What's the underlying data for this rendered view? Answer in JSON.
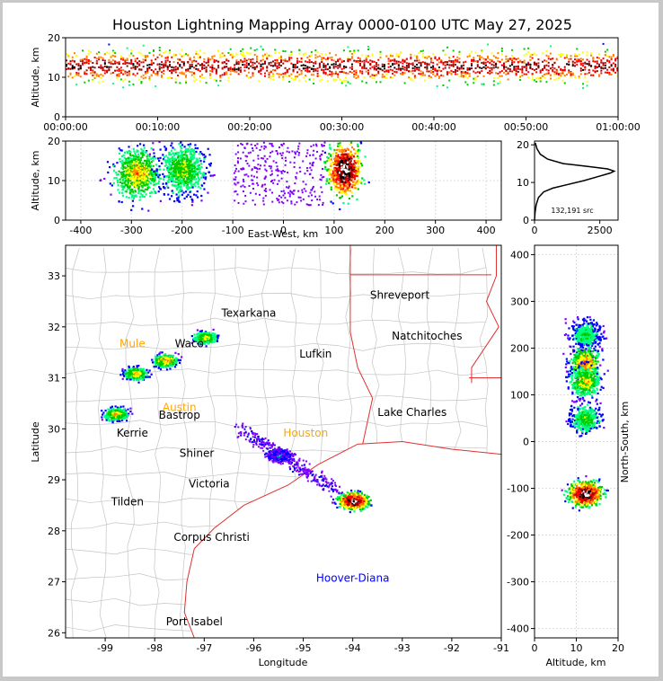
{
  "chart_data": [
    {
      "type": "heatmap",
      "panel": "altitude-vs-time",
      "title": "Houston Lightning Mapping Array 0000-0100 UTC May 27, 2025",
      "ylabel": "Altitude, km",
      "xlabel": "",
      "x_ticks": [
        "00:00:00",
        "00:10:00",
        "00:20:00",
        "00:30:00",
        "00:40:00",
        "00:50:00",
        "01:00:00"
      ],
      "x_range_minutes": [
        0,
        60
      ],
      "y_ticks": [
        0,
        10,
        20
      ],
      "ylim": [
        0,
        20
      ],
      "band": {
        "core_altitude_km": 13,
        "extent_km": [
          4,
          20
        ]
      }
    },
    {
      "type": "heatmap",
      "panel": "altitude-vs-east-west",
      "xlabel": "East-West, km",
      "ylabel": "Altitude, km",
      "x_ticks": [
        -400,
        -300,
        -200,
        -100,
        0,
        100,
        200,
        300,
        400
      ],
      "xlim": [
        -430,
        430
      ],
      "y_ticks": [
        0,
        10,
        20
      ],
      "ylim": [
        0,
        20
      ],
      "clusters": [
        {
          "x_km": -290,
          "alt_km": 12,
          "density": 0.55
        },
        {
          "x_km": -200,
          "alt_km": 13,
          "density": 0.45
        },
        {
          "x_km": 120,
          "alt_km": 13,
          "density": 1.0
        }
      ]
    },
    {
      "type": "line",
      "panel": "altitude-histogram",
      "x_ticks": [
        0,
        2500
      ],
      "xlim": [
        0,
        3200
      ],
      "y_ticks": [
        0,
        10,
        20
      ],
      "ylim": [
        0,
        21
      ],
      "annotation": "132,191 src",
      "profile": [
        [
          0,
          0
        ],
        [
          20,
          2
        ],
        [
          60,
          4
        ],
        [
          150,
          6
        ],
        [
          350,
          7.5
        ],
        [
          700,
          8.5
        ],
        [
          1300,
          9.5
        ],
        [
          1900,
          10.5
        ],
        [
          2400,
          11.5
        ],
        [
          2900,
          12.5
        ],
        [
          3050,
          13
        ],
        [
          2800,
          13.6
        ],
        [
          2000,
          14.3
        ],
        [
          1100,
          15
        ],
        [
          500,
          16.2
        ],
        [
          220,
          17.5
        ],
        [
          90,
          19
        ],
        [
          30,
          20.5
        ]
      ]
    },
    {
      "type": "map",
      "panel": "plan-view",
      "xlabel": "Longitude",
      "ylabel": "Latitude",
      "x_ticks": [
        -99,
        -98,
        -97,
        -96,
        -95,
        -94,
        -93,
        -92,
        -91
      ],
      "xlim": [
        -99.8,
        -91
      ],
      "y_ticks": [
        26,
        27,
        28,
        29,
        30,
        31,
        32,
        33
      ],
      "ylim": [
        25.9,
        33.6
      ],
      "cities": [
        {
          "name": "Shreveport",
          "lon": -93.05,
          "lat": 32.55,
          "color": "#000000"
        },
        {
          "name": "Natchitoches",
          "lon": -92.5,
          "lat": 31.75,
          "color": "#000000"
        },
        {
          "name": "Lufkin",
          "lon": -94.75,
          "lat": 31.4,
          "color": "#000000"
        },
        {
          "name": "Lake Charles",
          "lon": -92.8,
          "lat": 30.25,
          "color": "#000000"
        },
        {
          "name": "Shiner",
          "lon": -97.15,
          "lat": 29.45,
          "color": "#000000"
        },
        {
          "name": "Victoria",
          "lon": -96.9,
          "lat": 28.85,
          "color": "#000000"
        },
        {
          "name": "Tilden",
          "lon": -98.55,
          "lat": 28.5,
          "color": "#000000"
        },
        {
          "name": "Corpus Christi",
          "lon": -96.85,
          "lat": 27.8,
          "color": "#000000"
        },
        {
          "name": "Hoover-Diana",
          "lon": -94.0,
          "lat": 27.0,
          "color": "#0000ff"
        },
        {
          "name": "Port Isabel",
          "lon": -97.2,
          "lat": 26.15,
          "color": "#000000"
        },
        {
          "name": "Texarkana",
          "lon": -96.1,
          "lat": 32.2,
          "color": "#000000"
        },
        {
          "name": "Waco",
          "lon": -97.3,
          "lat": 31.6,
          "color": "#000000"
        },
        {
          "name": "Bastrop",
          "lon": -97.5,
          "lat": 30.2,
          "color": "#000000"
        },
        {
          "name": "Kerrie",
          "lon": -98.45,
          "lat": 29.85,
          "color": "#000000"
        },
        {
          "name": "Houston",
          "lon": -94.95,
          "lat": 29.85,
          "color": "#ffa500"
        },
        {
          "name": "Austin",
          "lon": -97.5,
          "lat": 30.35,
          "color": "#ffa500"
        },
        {
          "name": "Mule",
          "lon": -98.45,
          "lat": 31.6,
          "color": "#ffa500"
        }
      ],
      "storms": [
        {
          "lon": -98.8,
          "lat": 30.3,
          "intensity": 0.55
        },
        {
          "lon": -98.4,
          "lat": 31.1,
          "intensity": 0.55
        },
        {
          "lon": -97.8,
          "lat": 31.35,
          "intensity": 0.6
        },
        {
          "lon": -97.0,
          "lat": 31.8,
          "intensity": 0.5
        },
        {
          "lon": -95.5,
          "lat": 29.5,
          "intensity": 0.25
        },
        {
          "lon": -94.0,
          "lat": 28.6,
          "intensity": 1.0
        }
      ]
    },
    {
      "type": "heatmap",
      "panel": "north-south-vs-altitude",
      "xlabel": "Altitude, km",
      "ylabel": "North-South, km",
      "x_ticks": [
        0,
        10,
        20
      ],
      "xlim": [
        0,
        20
      ],
      "y_ticks": [
        -400,
        -300,
        -200,
        -100,
        0,
        100,
        200,
        300,
        400
      ],
      "ylim": [
        -420,
        420
      ],
      "clusters": [
        {
          "ns_km": 230,
          "alt_km": 12,
          "density": 0.35
        },
        {
          "ns_km": 170,
          "alt_km": 12,
          "density": 0.6
        },
        {
          "ns_km": 130,
          "alt_km": 12,
          "density": 0.5
        },
        {
          "ns_km": 50,
          "alt_km": 12,
          "density": 0.4
        },
        {
          "ns_km": -110,
          "alt_km": 12,
          "density": 1.0
        }
      ]
    }
  ]
}
